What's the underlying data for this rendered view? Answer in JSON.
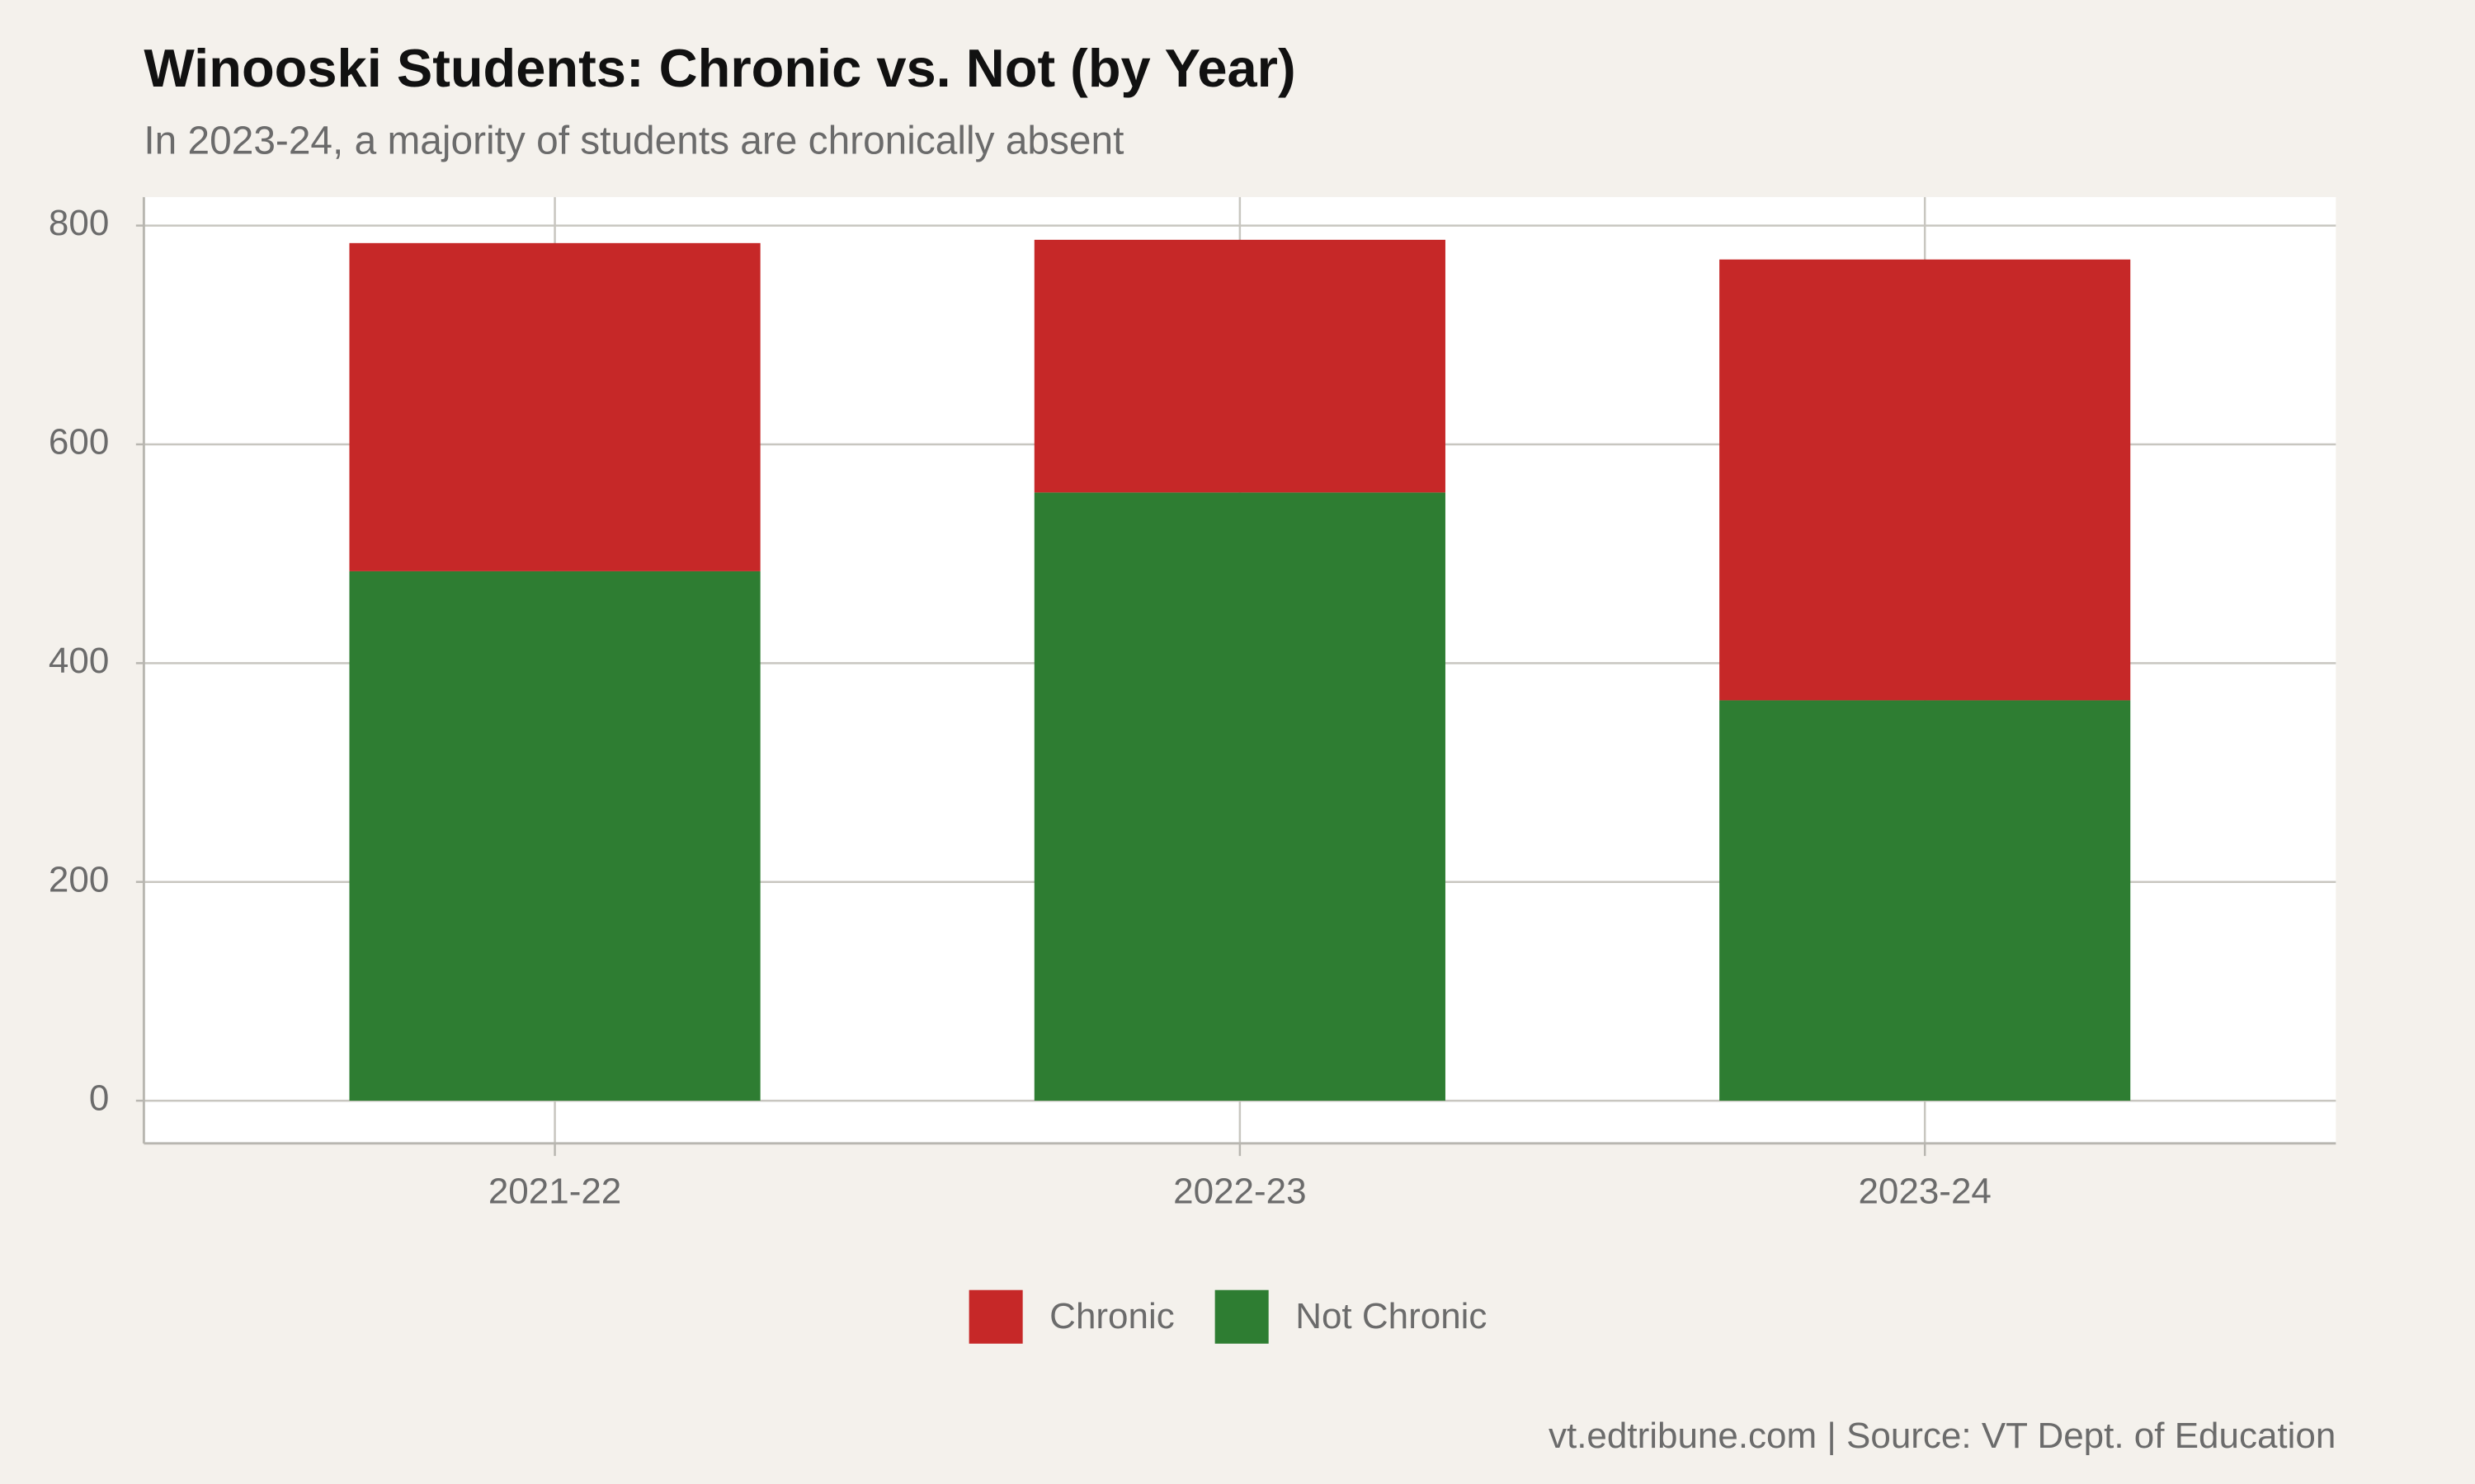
{
  "chart_data": {
    "type": "stacked_bar",
    "title": "Winooski Students: Chronic vs. Not (by Year)",
    "subtitle": "In 2023-24, a majority of students are chronically absent",
    "caption": "vt.edtribune.com | Source: VT Dept. of Education",
    "categories": [
      "2021-22",
      "2022-23",
      "2023-24"
    ],
    "series": [
      {
        "name": "Chronic",
        "color": "#c62828",
        "values": [
          300,
          231,
          403
        ]
      },
      {
        "name": "Not Chronic",
        "color": "#2e7d32",
        "values": [
          484,
          556,
          366
        ]
      }
    ],
    "ylim": [
      -39,
      826
    ],
    "yticks": [
      0,
      200,
      400,
      600,
      800
    ],
    "grid": true,
    "legend": "bottom"
  }
}
